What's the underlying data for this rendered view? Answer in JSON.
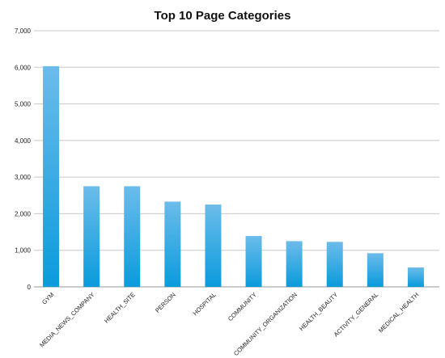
{
  "chart_data": {
    "type": "bar",
    "title": "Top 10 Page Categories",
    "xlabel": "",
    "ylabel": "",
    "categories": [
      "GYM",
      "MEDIA_NEWS_COMPANY",
      "HEALTH_SITE",
      "PERSON",
      "HOSPITAL",
      "COMMUNITY",
      "COMMUNITY_ORGANIZATION",
      "HEALTH_BEAUTY",
      "ACTIVITY_GENERAL",
      "MEDICAL_HEALTH"
    ],
    "values": [
      6030,
      2750,
      2750,
      2330,
      2250,
      1390,
      1250,
      1230,
      920,
      530
    ],
    "ylim": [
      0,
      7000
    ],
    "yticks": [
      "0",
      "1,000",
      "2,000",
      "3,000",
      "4,000",
      "5,000",
      "6,000",
      "7,000"
    ],
    "grid": true,
    "legend": "none",
    "colors": {
      "bar_top": "#6cbcea",
      "bar_bottom": "#0a9bdc",
      "grid": "#c8c8c8",
      "axis": "#9a9a9a"
    }
  }
}
